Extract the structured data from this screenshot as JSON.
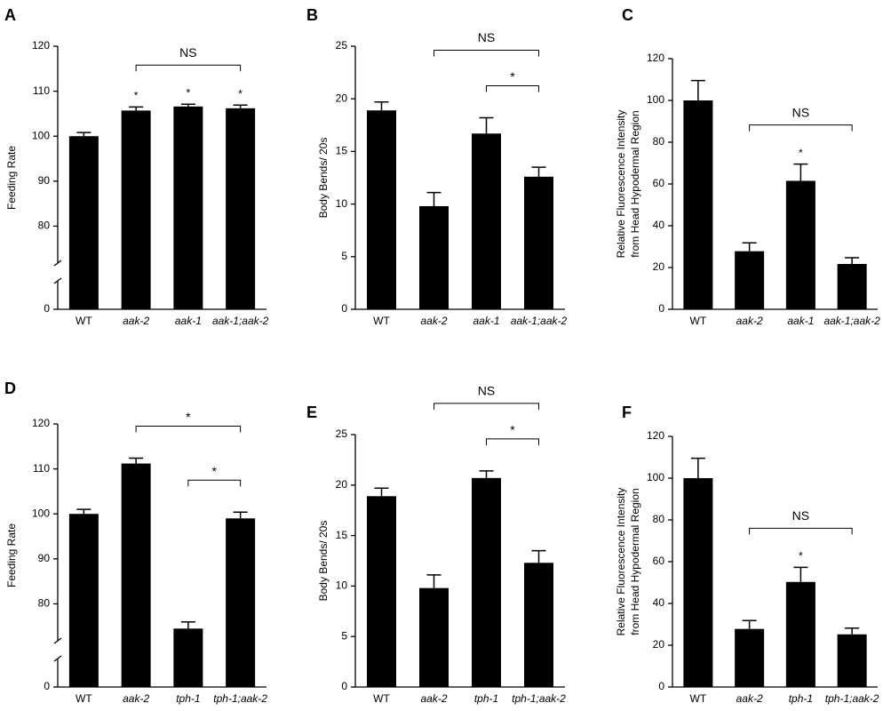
{
  "chart_data": [
    {
      "type": "bar",
      "panel": "A",
      "ylabel": "Feeding Rate",
      "categories": [
        "WT",
        "aak-2",
        "aak-1",
        "aak-1;aak-2"
      ],
      "italic_categories": [
        false,
        true,
        true,
        true
      ],
      "values": [
        100,
        105.7,
        106.6,
        106.2
      ],
      "errors": [
        0.8,
        0.8,
        0.5,
        0.7
      ],
      "color": "#000000",
      "ylim": [
        0,
        120
      ],
      "ybreak": [
        10,
        71
      ],
      "yticks": [
        0,
        80,
        90,
        100,
        110,
        120
      ],
      "stars": [
        {
          "index": 1,
          "label": "*"
        },
        {
          "index": 2,
          "label": "*"
        },
        {
          "index": 3,
          "label": "*"
        }
      ],
      "brackets": [
        {
          "from": 1,
          "to": 3,
          "label": "NS"
        }
      ]
    },
    {
      "type": "bar",
      "panel": "B",
      "ylabel": "Body Bends/ 20s",
      "categories": [
        "WT",
        "aak-2",
        "aak-1",
        "aak-1;aak-2"
      ],
      "italic_categories": [
        false,
        true,
        true,
        true
      ],
      "values": [
        18.9,
        9.8,
        16.7,
        12.6
      ],
      "errors": [
        0.8,
        1.3,
        1.5,
        0.9
      ],
      "color": "#000000",
      "ylim": [
        0,
        25
      ],
      "yticks": [
        0,
        5,
        10,
        15,
        20,
        25
      ],
      "stars": [],
      "brackets": [
        {
          "from": 1,
          "to": 3,
          "label": "NS"
        },
        {
          "from": 2,
          "to": 3,
          "label": "*"
        }
      ]
    },
    {
      "type": "bar",
      "panel": "C",
      "ylabel": [
        "Relative Fluorescence Intensity",
        "from  Head Hypodermal Region"
      ],
      "categories": [
        "WT",
        "aak-2",
        "aak-1",
        "aak-1;aak-2"
      ],
      "italic_categories": [
        false,
        true,
        true,
        true
      ],
      "values": [
        100,
        27.8,
        61.5,
        21.7
      ],
      "errors": [
        9.5,
        4,
        8,
        3
      ],
      "color": "#000000",
      "ylim": [
        0,
        120
      ],
      "yticks": [
        0,
        20,
        40,
        60,
        80,
        100,
        120
      ],
      "stars": [
        {
          "index": 2,
          "label": "*"
        }
      ],
      "brackets": [
        {
          "from": 1,
          "to": 3,
          "label": "NS"
        }
      ]
    },
    {
      "type": "bar",
      "panel": "D",
      "ylabel": "Feeding Rate",
      "categories": [
        "WT",
        "aak-2",
        "tph-1",
        "tph-1;aak-2"
      ],
      "italic_categories": [
        false,
        true,
        true,
        true
      ],
      "values": [
        100,
        111.2,
        74.5,
        99
      ],
      "errors": [
        1,
        1.2,
        1.5,
        1.4
      ],
      "color": "#000000",
      "ylim": [
        0,
        120
      ],
      "ybreak": [
        10,
        71
      ],
      "yticks": [
        0,
        80,
        90,
        100,
        110,
        120
      ],
      "stars": [],
      "brackets": [
        {
          "from": 1,
          "to": 3,
          "label": "*"
        },
        {
          "from": 2,
          "to": 3,
          "label": "*"
        }
      ]
    },
    {
      "type": "bar",
      "panel": "E",
      "ylabel": "Body Bends/ 20s",
      "categories": [
        "WT",
        "aak-2",
        "tph-1",
        "tph-1;aak-2"
      ],
      "italic_categories": [
        false,
        true,
        true,
        true
      ],
      "values": [
        18.9,
        9.8,
        20.7,
        12.3
      ],
      "errors": [
        0.8,
        1.3,
        0.7,
        1.2
      ],
      "color": "#000000",
      "ylim": [
        0,
        25
      ],
      "yticks": [
        0,
        5,
        10,
        15,
        20,
        25
      ],
      "stars": [],
      "brackets": [
        {
          "from": 1,
          "to": 3,
          "label": "NS"
        },
        {
          "from": 2,
          "to": 3,
          "label": "*"
        }
      ]
    },
    {
      "type": "bar",
      "panel": "F",
      "ylabel": [
        "Relative Fluorescence Intensity",
        "from  Head Hypodermal Region"
      ],
      "categories": [
        "WT",
        "aak-2",
        "tph-1",
        "tph-1;aak-2"
      ],
      "italic_categories": [
        false,
        true,
        true,
        true
      ],
      "values": [
        100,
        27.8,
        50.3,
        25.2
      ],
      "errors": [
        9.5,
        4,
        7,
        3
      ],
      "color": "#000000",
      "ylim": [
        0,
        120
      ],
      "yticks": [
        0,
        20,
        40,
        60,
        80,
        100,
        120
      ],
      "stars": [
        {
          "index": 2,
          "label": "*"
        }
      ],
      "brackets": [
        {
          "from": 1,
          "to": 3,
          "label": "NS"
        }
      ]
    }
  ]
}
